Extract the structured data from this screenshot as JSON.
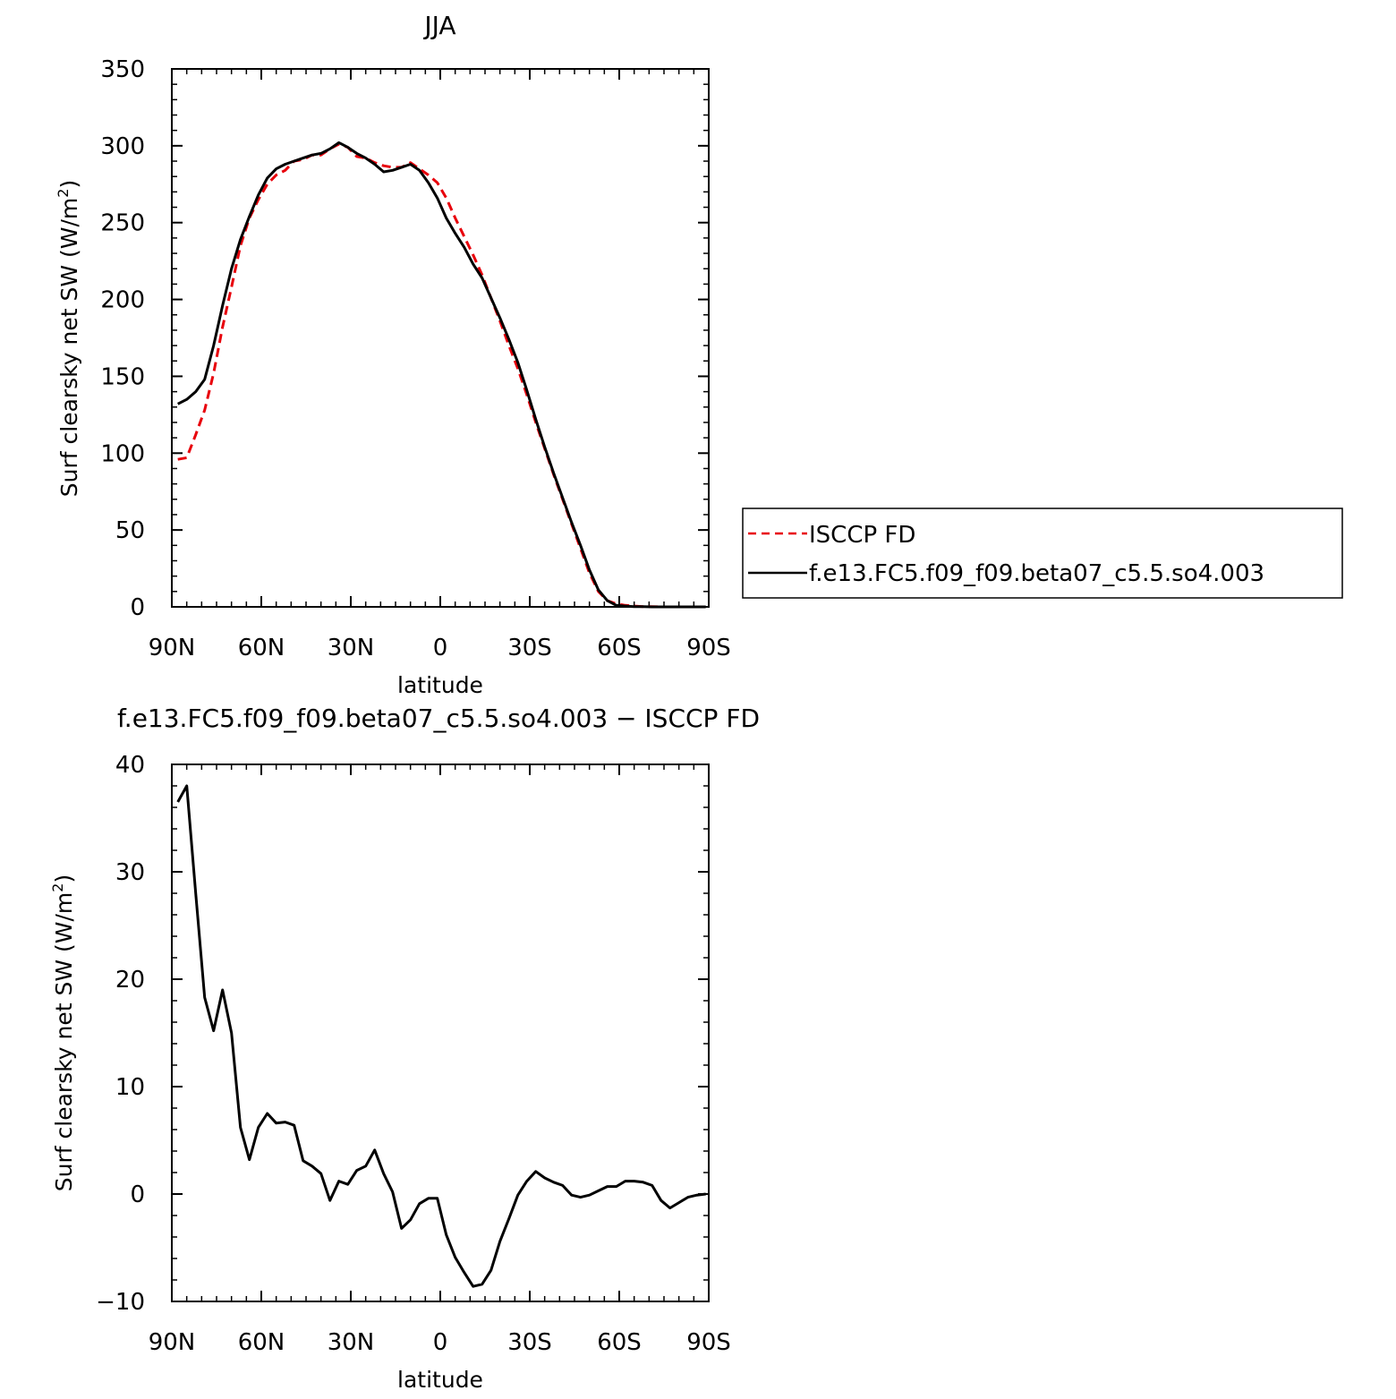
{
  "chart_data": [
    {
      "type": "line",
      "title": "JJA",
      "xlabel": "latitude",
      "ylabel": "Surf clearsky net SW (W/m",
      "ylabel_sup": "2",
      "ylabel_close": ")",
      "xlim": [
        90,
        -90
      ],
      "ylim": [
        0,
        350
      ],
      "x_ticks": [
        {
          "value": 90,
          "label": "90N"
        },
        {
          "value": 60,
          "label": "60N"
        },
        {
          "value": 30,
          "label": "30N"
        },
        {
          "value": 0,
          "label": "0"
        },
        {
          "value": -30,
          "label": "30S"
        },
        {
          "value": -60,
          "label": "60S"
        },
        {
          "value": -90,
          "label": "90S"
        }
      ],
      "y_ticks": [
        0,
        50,
        100,
        150,
        200,
        250,
        300,
        350
      ],
      "legend": {
        "placement": "right"
      },
      "series": [
        {
          "name": "ISCCP FD",
          "color": "#e8000b",
          "dash": "dashed",
          "x": [
            88,
            85,
            82,
            79,
            76,
            73,
            70,
            67,
            64,
            61,
            58,
            55,
            52,
            49,
            46,
            43,
            40,
            37,
            34,
            31,
            28,
            25,
            22,
            19,
            16,
            13,
            10,
            7,
            4,
            1,
            -2,
            -5,
            -8,
            -11,
            -14,
            -17,
            -20,
            -23,
            -26,
            -29,
            -32,
            -35,
            -38,
            -41,
            -44,
            -47,
            -50,
            -53,
            -56,
            -59,
            -62,
            -65,
            -68,
            -71,
            -74,
            -77,
            -80,
            -83,
            -86,
            -89
          ],
          "y": [
            96,
            97,
            112,
            128,
            152,
            182,
            208,
            235,
            253,
            265,
            275,
            281,
            284,
            290,
            291,
            294,
            294,
            298,
            301,
            299,
            293,
            292,
            289,
            287,
            286,
            286,
            289,
            285,
            281,
            276,
            266,
            253,
            241,
            229,
            216,
            201,
            186,
            170,
            155,
            138,
            120,
            103,
            86,
            70,
            54,
            38,
            22,
            10,
            4,
            2,
            1,
            0.5,
            0.2,
            0.1,
            0,
            0,
            0,
            0,
            0,
            0
          ]
        },
        {
          "name": "f.e13.FC5.f09_f09.beta07_c5.5.so4.003",
          "color": "#000000",
          "dash": "solid",
          "x": [
            88,
            85,
            82,
            79,
            76,
            73,
            70,
            67,
            64,
            61,
            58,
            55,
            52,
            49,
            46,
            43,
            40,
            37,
            34,
            31,
            28,
            25,
            22,
            19,
            16,
            13,
            10,
            7,
            4,
            1,
            -2,
            -5,
            -8,
            -11,
            -14,
            -17,
            -20,
            -23,
            -26,
            -29,
            -32,
            -35,
            -38,
            -41,
            -44,
            -47,
            -50,
            -53,
            -56,
            -59,
            -62,
            -65,
            -68,
            -71,
            -74,
            -77,
            -80,
            -83,
            -86,
            -89
          ],
          "y": [
            132,
            135,
            140,
            148,
            170,
            196,
            220,
            239,
            254,
            268,
            279,
            285,
            288,
            290,
            292,
            294,
            295,
            298,
            302,
            299,
            295,
            292,
            288,
            283,
            284,
            286,
            288,
            284,
            276,
            266,
            253,
            243,
            234,
            223,
            214,
            201,
            188,
            174,
            159,
            141,
            122,
            104,
            87,
            71,
            55,
            40,
            24,
            11,
            4,
            1,
            0.5,
            0.2,
            0.1,
            0,
            0,
            0,
            0,
            0,
            0,
            0
          ]
        }
      ]
    },
    {
      "type": "line",
      "title": "f.e13.FC5.f09_f09.beta07_c5.5.so4.003 − ISCCP FD",
      "xlabel": "latitude",
      "ylabel": "Surf clearsky net SW (W/m",
      "ylabel_sup": "2",
      "ylabel_close": ")",
      "xlim": [
        90,
        -90
      ],
      "ylim": [
        -10,
        40
      ],
      "x_ticks": [
        {
          "value": 90,
          "label": "90N"
        },
        {
          "value": 60,
          "label": "60N"
        },
        {
          "value": 30,
          "label": "30N"
        },
        {
          "value": 0,
          "label": "0"
        },
        {
          "value": -30,
          "label": "30S"
        },
        {
          "value": -60,
          "label": "60S"
        },
        {
          "value": -90,
          "label": "90S"
        }
      ],
      "y_ticks": [
        {
          "value": -10,
          "label": "−10"
        },
        {
          "value": 0,
          "label": "0"
        },
        {
          "value": 10,
          "label": "10"
        },
        {
          "value": 20,
          "label": "20"
        },
        {
          "value": 30,
          "label": "30"
        },
        {
          "value": 40,
          "label": "40"
        }
      ],
      "series": [
        {
          "color": "#000000",
          "dash": "solid",
          "x": [
            88,
            85,
            82,
            79,
            76,
            73,
            70,
            67,
            64,
            61,
            58,
            55,
            52,
            49,
            46,
            43,
            40,
            37,
            34,
            31,
            28,
            25,
            22,
            19,
            16,
            13,
            10,
            7,
            4,
            1,
            -2,
            -5,
            -8,
            -11,
            -14,
            -17,
            -20,
            -23,
            -26,
            -29,
            -32,
            -35,
            -38,
            -41,
            -44,
            -47,
            -50,
            -53,
            -56,
            -59,
            -62,
            -65,
            -68,
            -71,
            -74,
            -77,
            -80,
            -83,
            -86,
            -89
          ],
          "y": [
            36.5,
            38,
            28,
            18.3,
            15.2,
            19,
            15,
            6.2,
            3.2,
            6.2,
            7.5,
            6.6,
            6.7,
            6.4,
            3.1,
            2.6,
            1.9,
            -0.6,
            1.2,
            0.9,
            2.2,
            2.6,
            4.1,
            1.9,
            0.2,
            -3.2,
            -2.4,
            -0.9,
            -0.4,
            -0.4,
            -3.8,
            -5.9,
            -7.3,
            -8.6,
            -8.4,
            -7.1,
            -4.4,
            -2.3,
            -0.1,
            1.2,
            2.1,
            1.5,
            1.1,
            0.8,
            -0.1,
            -0.3,
            -0.1,
            0.3,
            0.7,
            0.7,
            1.2,
            1.2,
            1.1,
            0.8,
            -0.6,
            -1.3,
            -0.8,
            -0.3,
            -0.1,
            0
          ]
        }
      ]
    }
  ]
}
